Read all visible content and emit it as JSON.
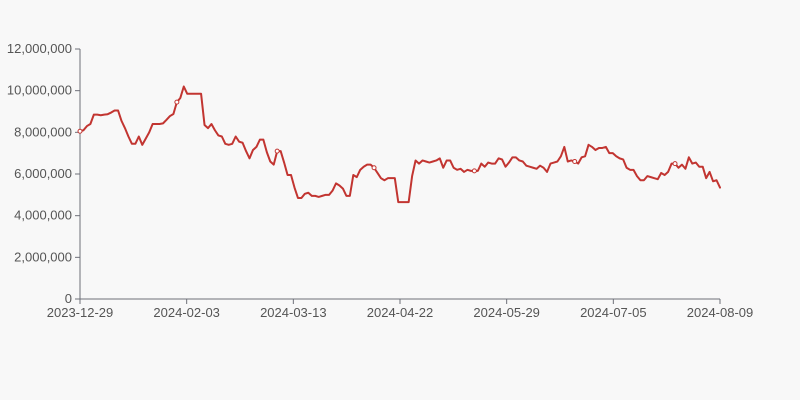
{
  "chart_data": {
    "type": "line",
    "title": "",
    "xlabel": "",
    "ylabel": "",
    "ylim": [
      0,
      12000000
    ],
    "y_ticks": [
      0,
      2000000,
      4000000,
      6000000,
      8000000,
      10000000,
      12000000
    ],
    "y_tick_labels": [
      "0",
      "2,000,000",
      "4,000,000",
      "6,000,000",
      "8,000,000",
      "10,000,000",
      "12,000,000"
    ],
    "x_tick_labels": [
      "2023-12-29",
      "2024-02-03",
      "2024-03-13",
      "2024-04-22",
      "2024-05-29",
      "2024-07-05",
      "2024-08-09"
    ],
    "grid": false,
    "legend": "none",
    "line_color": "#c23531",
    "series": [
      {
        "values": [
          8050000,
          8100000,
          8300000,
          8400000,
          8850000,
          8850000,
          8820000,
          8850000,
          8870000,
          8950000,
          9050000,
          9050000,
          8550000,
          8200000,
          7800000,
          7450000,
          7450000,
          7800000,
          7400000,
          7700000,
          8000000,
          8400000,
          8400000,
          8400000,
          8430000,
          8600000,
          8780000,
          8880000,
          9450000,
          9650000,
          10200000,
          9850000,
          9850000,
          9850000,
          9850000,
          9850000,
          8350000,
          8200000,
          8400000,
          8100000,
          7850000,
          7800000,
          7450000,
          7400000,
          7450000,
          7800000,
          7550000,
          7500000,
          7100000,
          6750000,
          7150000,
          7300000,
          7650000,
          7650000,
          7050000,
          6600000,
          6450000,
          7100000,
          7100000,
          6550000,
          5950000,
          5950000,
          5350000,
          4850000,
          4850000,
          5050000,
          5100000,
          4950000,
          4950000,
          4900000,
          4950000,
          5000000,
          5000000,
          5200000,
          5550000,
          5450000,
          5300000,
          4950000,
          4950000,
          5950000,
          5850000,
          6200000,
          6350000,
          6450000,
          6450000,
          6300000,
          6050000,
          5800000,
          5700000,
          5800000,
          5800000,
          5800000,
          4650000,
          4650000,
          4650000,
          4650000,
          5900000,
          6650000,
          6500000,
          6650000,
          6600000,
          6550000,
          6600000,
          6650000,
          6750000,
          6300000,
          6650000,
          6650000,
          6300000,
          6200000,
          6250000,
          6100000,
          6200000,
          6150000,
          6150000,
          6150000,
          6500000,
          6350000,
          6550000,
          6500000,
          6500000,
          6750000,
          6700000,
          6350000,
          6550000,
          6800000,
          6800000,
          6650000,
          6600000,
          6400000,
          6350000,
          6300000,
          6250000,
          6400000,
          6300000,
          6100000,
          6500000,
          6550000,
          6600000,
          6850000,
          7300000,
          6600000,
          6650000,
          6600000,
          6500000,
          6800000,
          6850000,
          7400000,
          7300000,
          7150000,
          7250000,
          7250000,
          7300000,
          7000000,
          7000000,
          6850000,
          6750000,
          6700000,
          6300000,
          6200000,
          6200000,
          5900000,
          5700000,
          5700000,
          5900000,
          5850000,
          5800000,
          5750000,
          6050000,
          5950000,
          6100000,
          6500000,
          6500000,
          6300000,
          6450000,
          6250000,
          6800000,
          6500000,
          6550000,
          6350000,
          6350000,
          5800000,
          6100000,
          5650000,
          5700000,
          5350000
        ]
      }
    ]
  }
}
